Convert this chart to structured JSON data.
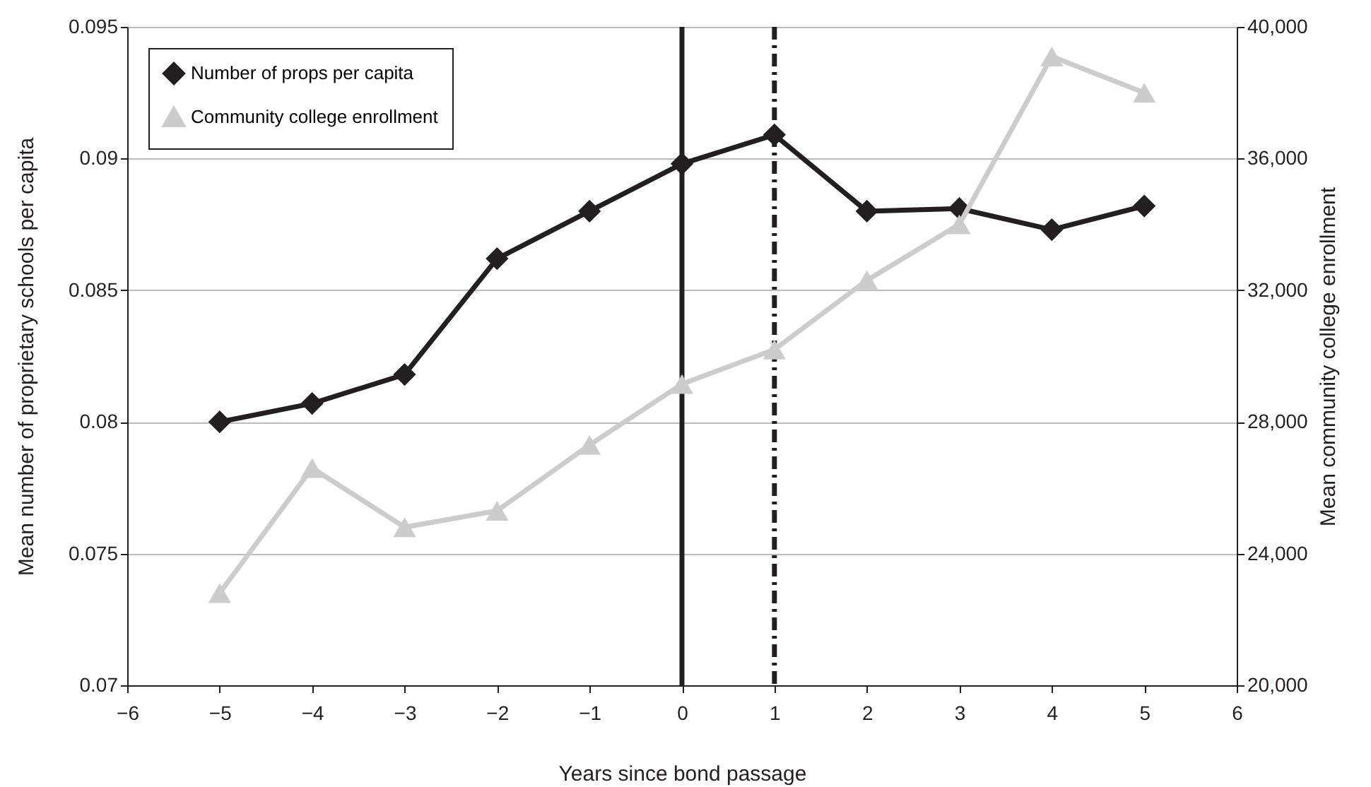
{
  "chart_data": {
    "type": "line",
    "xlabel": "Years since bond passage",
    "ylabel": "Mean number of proprietary schools per capita",
    "y2label": "Mean community college enrollment",
    "x": [
      -5,
      -4,
      -3,
      -2,
      -1,
      0,
      1,
      2,
      3,
      4,
      5
    ],
    "series": [
      {
        "name": "Number of props per capita",
        "color": "#231f20",
        "marker": "diamond",
        "values": [
          0.08,
          0.0807,
          0.0818,
          0.0862,
          0.088,
          0.0898,
          0.0909,
          0.088,
          0.0881,
          0.0873,
          0.0882
        ]
      },
      {
        "name": "Community college enrollment",
        "color": "#cccccc",
        "marker": "triangle",
        "axis": "y2",
        "values": [
          22800,
          26600,
          24800,
          25300,
          27300,
          29150,
          30200,
          32300,
          34000,
          39100,
          38000
        ]
      }
    ],
    "xlim": [
      -6,
      6
    ],
    "xticks": [
      {
        "value": -6,
        "label": "−6"
      },
      {
        "value": -5,
        "label": "−5"
      },
      {
        "value": -4,
        "label": "−4"
      },
      {
        "value": -3,
        "label": "−3"
      },
      {
        "value": -2,
        "label": "−2"
      },
      {
        "value": -1,
        "label": "−1"
      },
      0,
      1,
      2,
      3,
      4,
      5,
      6
    ],
    "ylim": [
      0.07,
      0.095
    ],
    "yticks": [
      0.07,
      0.075,
      0.08,
      0.085,
      0.09,
      0.095
    ],
    "y2lim": [
      20000,
      40000
    ],
    "y2ticks": [
      {
        "value": 20000,
        "label": "20,000"
      },
      {
        "value": 24000,
        "label": "24,000"
      },
      {
        "value": 28000,
        "label": "28,000"
      },
      {
        "value": 32000,
        "label": "32,000"
      },
      {
        "value": 36000,
        "label": "36,000"
      },
      {
        "value": 40000,
        "label": "40,000"
      }
    ],
    "ref_lines": [
      {
        "axis": "x",
        "value": 0,
        "color": "#231f20",
        "line_style": "solid"
      },
      {
        "axis": "x",
        "value": 1,
        "color": "#231f20",
        "line_style": "dashed"
      }
    ],
    "grid": "y",
    "legend": "top left",
    "line_style": "solid"
  }
}
